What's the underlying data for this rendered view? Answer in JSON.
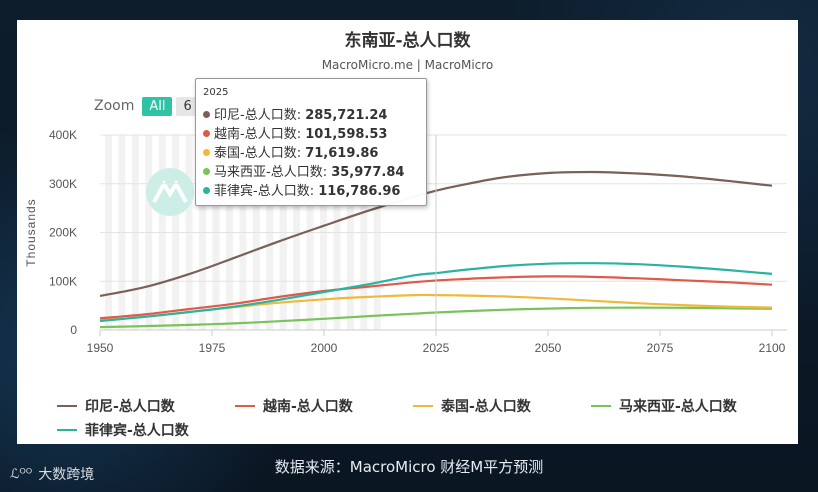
{
  "source_caption": "数据来源：MacroMicro 财经M平方预测",
  "brand": {
    "mark": "ℒᴼᴼ",
    "name": "大数跨境"
  },
  "zoom": {
    "label": "Zoom",
    "all": "All",
    "partial": "6"
  },
  "watermark": "MacroMicro",
  "chart_data": {
    "type": "line",
    "title": "东南亚-总人口数",
    "subtitle": "MacroMicro.me | MacroMicro",
    "ylabel": "Thousands",
    "xlabel": "",
    "xlim": [
      1950,
      2100
    ],
    "ylim": [
      0,
      400000
    ],
    "x_ticks": [
      "1950",
      "1975",
      "2000",
      "2025",
      "2050",
      "2075",
      "2100"
    ],
    "y_ticks": [
      "0",
      "100K",
      "200K",
      "300K",
      "400K"
    ],
    "grid": true,
    "legend_position": "bottom",
    "hover_x": 2025,
    "x": [
      1950,
      1960,
      1970,
      1980,
      1990,
      2000,
      2010,
      2020,
      2025,
      2030,
      2040,
      2050,
      2060,
      2070,
      2080,
      2090,
      2100
    ],
    "series": [
      {
        "name": "印尼-总人口数",
        "color": "#7a6058",
        "values": [
          70000,
          88000,
          115000,
          148000,
          182000,
          214000,
          245000,
          273000,
          285721,
          296000,
          313000,
          322000,
          324000,
          321000,
          315000,
          306000,
          296000
        ]
      },
      {
        "name": "越南-总人口数",
        "color": "#df5a49",
        "values": [
          24000,
          32000,
          43000,
          54000,
          68000,
          80000,
          89000,
          98000,
          101599,
          104000,
          108000,
          110000,
          109000,
          106000,
          102000,
          98000,
          93000
        ]
      },
      {
        "name": "泰国-总人口数",
        "color": "#f0b93a",
        "values": [
          20000,
          27000,
          37000,
          47000,
          56000,
          63000,
          68000,
          71500,
          71620,
          71000,
          69000,
          65000,
          60000,
          55000,
          51000,
          48000,
          46000
        ]
      },
      {
        "name": "马来西亚-总人口数",
        "color": "#79c35b",
        "values": [
          6000,
          8000,
          10500,
          13500,
          18000,
          23000,
          28500,
          33500,
          35978,
          38000,
          41500,
          44000,
          45500,
          46000,
          45500,
          44500,
          43500
        ]
      },
      {
        "name": "菲律宾-总人口数",
        "color": "#2ab3a0",
        "values": [
          18500,
          27000,
          37000,
          48000,
          62000,
          78000,
          94000,
          112000,
          116787,
          122000,
          131000,
          136000,
          137000,
          135000,
          130000,
          123000,
          115000
        ]
      }
    ],
    "tooltip": {
      "header": "2025",
      "rows": [
        {
          "label": "印尼-总人口数: ",
          "value": "285,721.24",
          "color": "#7a6058"
        },
        {
          "label": "越南-总人口数: ",
          "value": "101,598.53",
          "color": "#df5a49"
        },
        {
          "label": "泰国-总人口数: ",
          "value": "71,619.86",
          "color": "#f0b93a"
        },
        {
          "label": "马来西亚-总人口数: ",
          "value": "35,977.84",
          "color": "#79c35b"
        },
        {
          "label": "菲律宾-总人口数: ",
          "value": "116,786.96",
          "color": "#2ab3a0"
        }
      ]
    }
  }
}
